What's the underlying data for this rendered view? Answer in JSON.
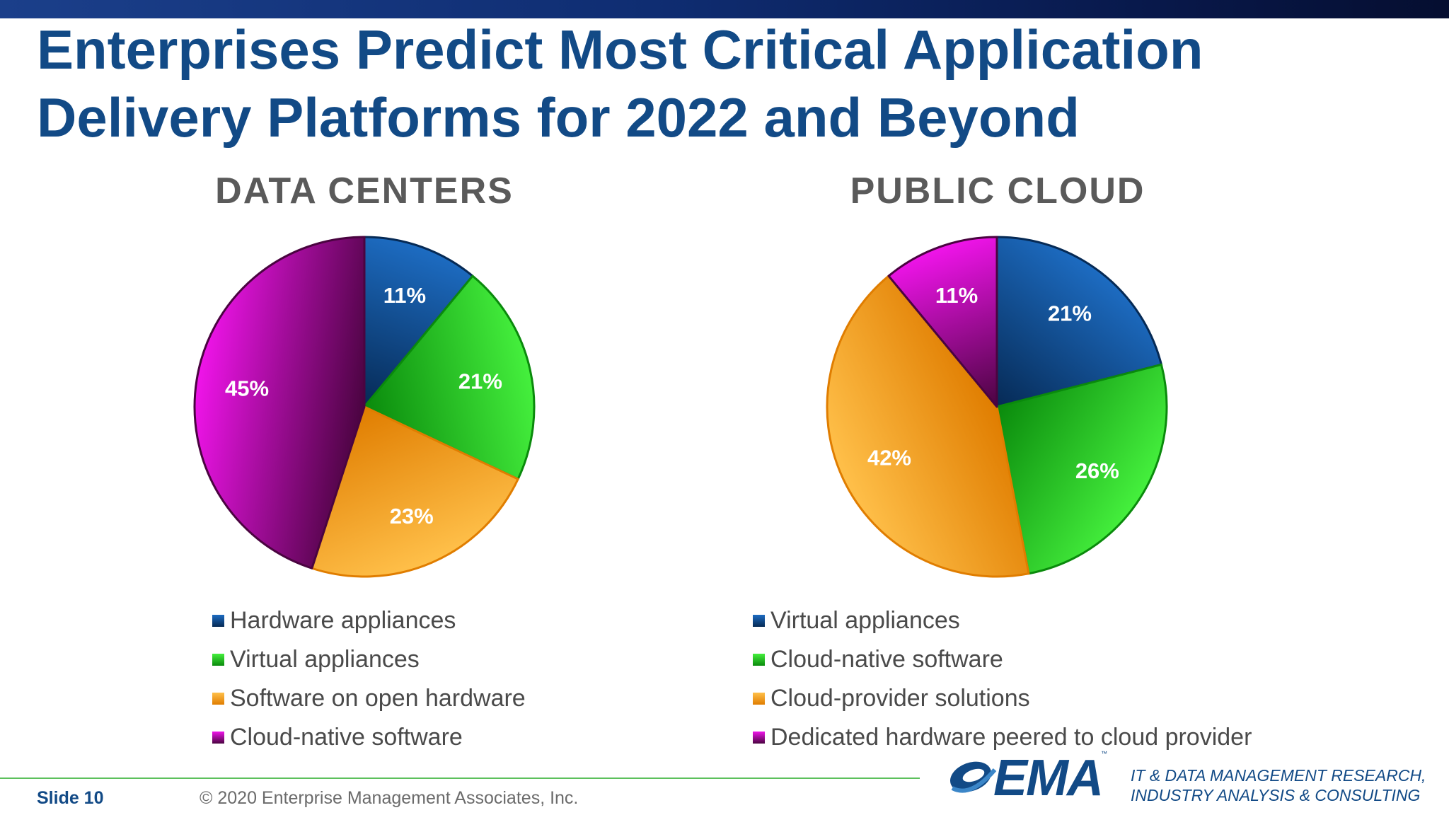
{
  "slide": {
    "title_line1": "Enterprises Predict Most Critical Application",
    "title_line2": "Delivery Platforms for 2022 and Beyond",
    "slide_label": "Slide 10",
    "copyright": "© 2020  Enterprise Management Associates, Inc.",
    "logo_text": "EMA",
    "logo_tm": "™",
    "tagline_line1": "IT & DATA MANAGEMENT RESEARCH,",
    "tagline_line2": "INDUSTRY ANALYSIS & CONSULTING",
    "title_color": "#124a86"
  },
  "chart_data": [
    {
      "type": "pie",
      "title": "DATA CENTERS",
      "start_angle_deg": 0,
      "direction": "clockwise",
      "legend_position": "bottom",
      "slices": [
        {
          "label": "Hardware appliances",
          "value": 11,
          "display": "11%",
          "color": "#0d4a8c"
        },
        {
          "label": "Virtual appliances",
          "value": 21,
          "display": "21%",
          "color": "#17c31a"
        },
        {
          "label": "Software on open hardware",
          "value": 23,
          "display": "23%",
          "color": "#f79a14"
        },
        {
          "label": "Cloud-native software",
          "value": 45,
          "display": "45%",
          "color": "#a6129e"
        }
      ]
    },
    {
      "type": "pie",
      "title": "PUBLIC CLOUD",
      "start_angle_deg": 0,
      "direction": "clockwise",
      "legend_position": "bottom",
      "slices": [
        {
          "label": "Virtual appliances",
          "value": 21,
          "display": "21%",
          "color": "#0d4a8c"
        },
        {
          "label": "Cloud-native software",
          "value": 26,
          "display": "26%",
          "color": "#17c31a"
        },
        {
          "label": "Cloud-provider solutions",
          "value": 42,
          "display": "42%",
          "color": "#f79a14"
        },
        {
          "label": "Dedicated hardware peered to cloud provider",
          "value": 11,
          "display": "11%",
          "color": "#a6129e"
        }
      ]
    }
  ]
}
